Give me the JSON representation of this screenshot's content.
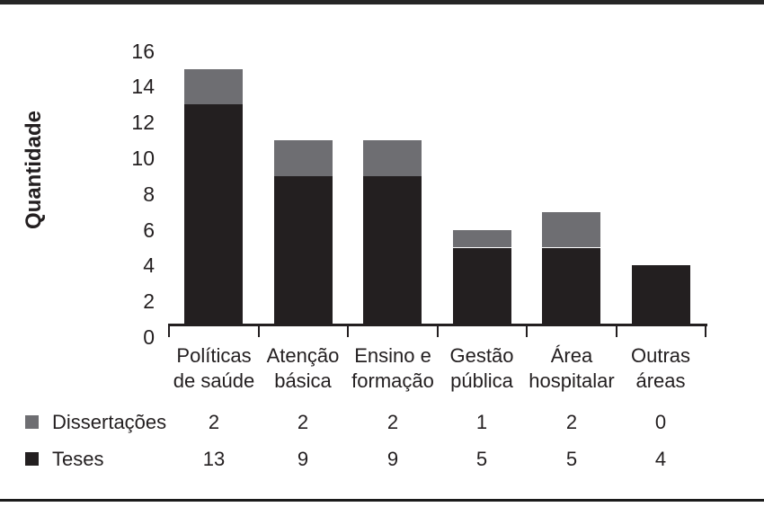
{
  "chart_data": {
    "type": "bar",
    "stacked": true,
    "title": "",
    "ylabel": "Quantidade",
    "xlabel": "",
    "ylim": [
      0,
      16
    ],
    "yticks": [
      0,
      2,
      4,
      6,
      8,
      10,
      12,
      14,
      16
    ],
    "grid": false,
    "legend_position": "bottom-table",
    "categories": [
      "Políticas de saúde",
      "Atenção básica",
      "Ensino e formação",
      "Gestão pública",
      "Área hospitalar",
      "Outras áreas"
    ],
    "category_label_lines": [
      [
        "Políticas",
        "de saúde"
      ],
      [
        "Atenção",
        "básica"
      ],
      [
        "Ensino e",
        "formação"
      ],
      [
        "Gestão",
        "pública"
      ],
      [
        "Área",
        "hospitalar"
      ],
      [
        "Outras",
        "áreas"
      ]
    ],
    "series": [
      {
        "name": "Dissertações",
        "stack": "top",
        "color": "#6e6e72",
        "values": [
          2,
          2,
          2,
          1,
          2,
          0
        ]
      },
      {
        "name": "Teses",
        "stack": "bottom",
        "color": "#231f20",
        "values": [
          13,
          9,
          9,
          5,
          5,
          4
        ]
      }
    ],
    "totals": [
      15,
      11,
      11,
      6,
      7,
      4
    ]
  },
  "colors": {
    "axis": "#231f20",
    "text": "#231f20",
    "top_border": "#262626",
    "bottom_border": "#1b1b1b",
    "background": "#ffffff",
    "bar_gray": "#6e6e72",
    "bar_black": "#231f20"
  }
}
